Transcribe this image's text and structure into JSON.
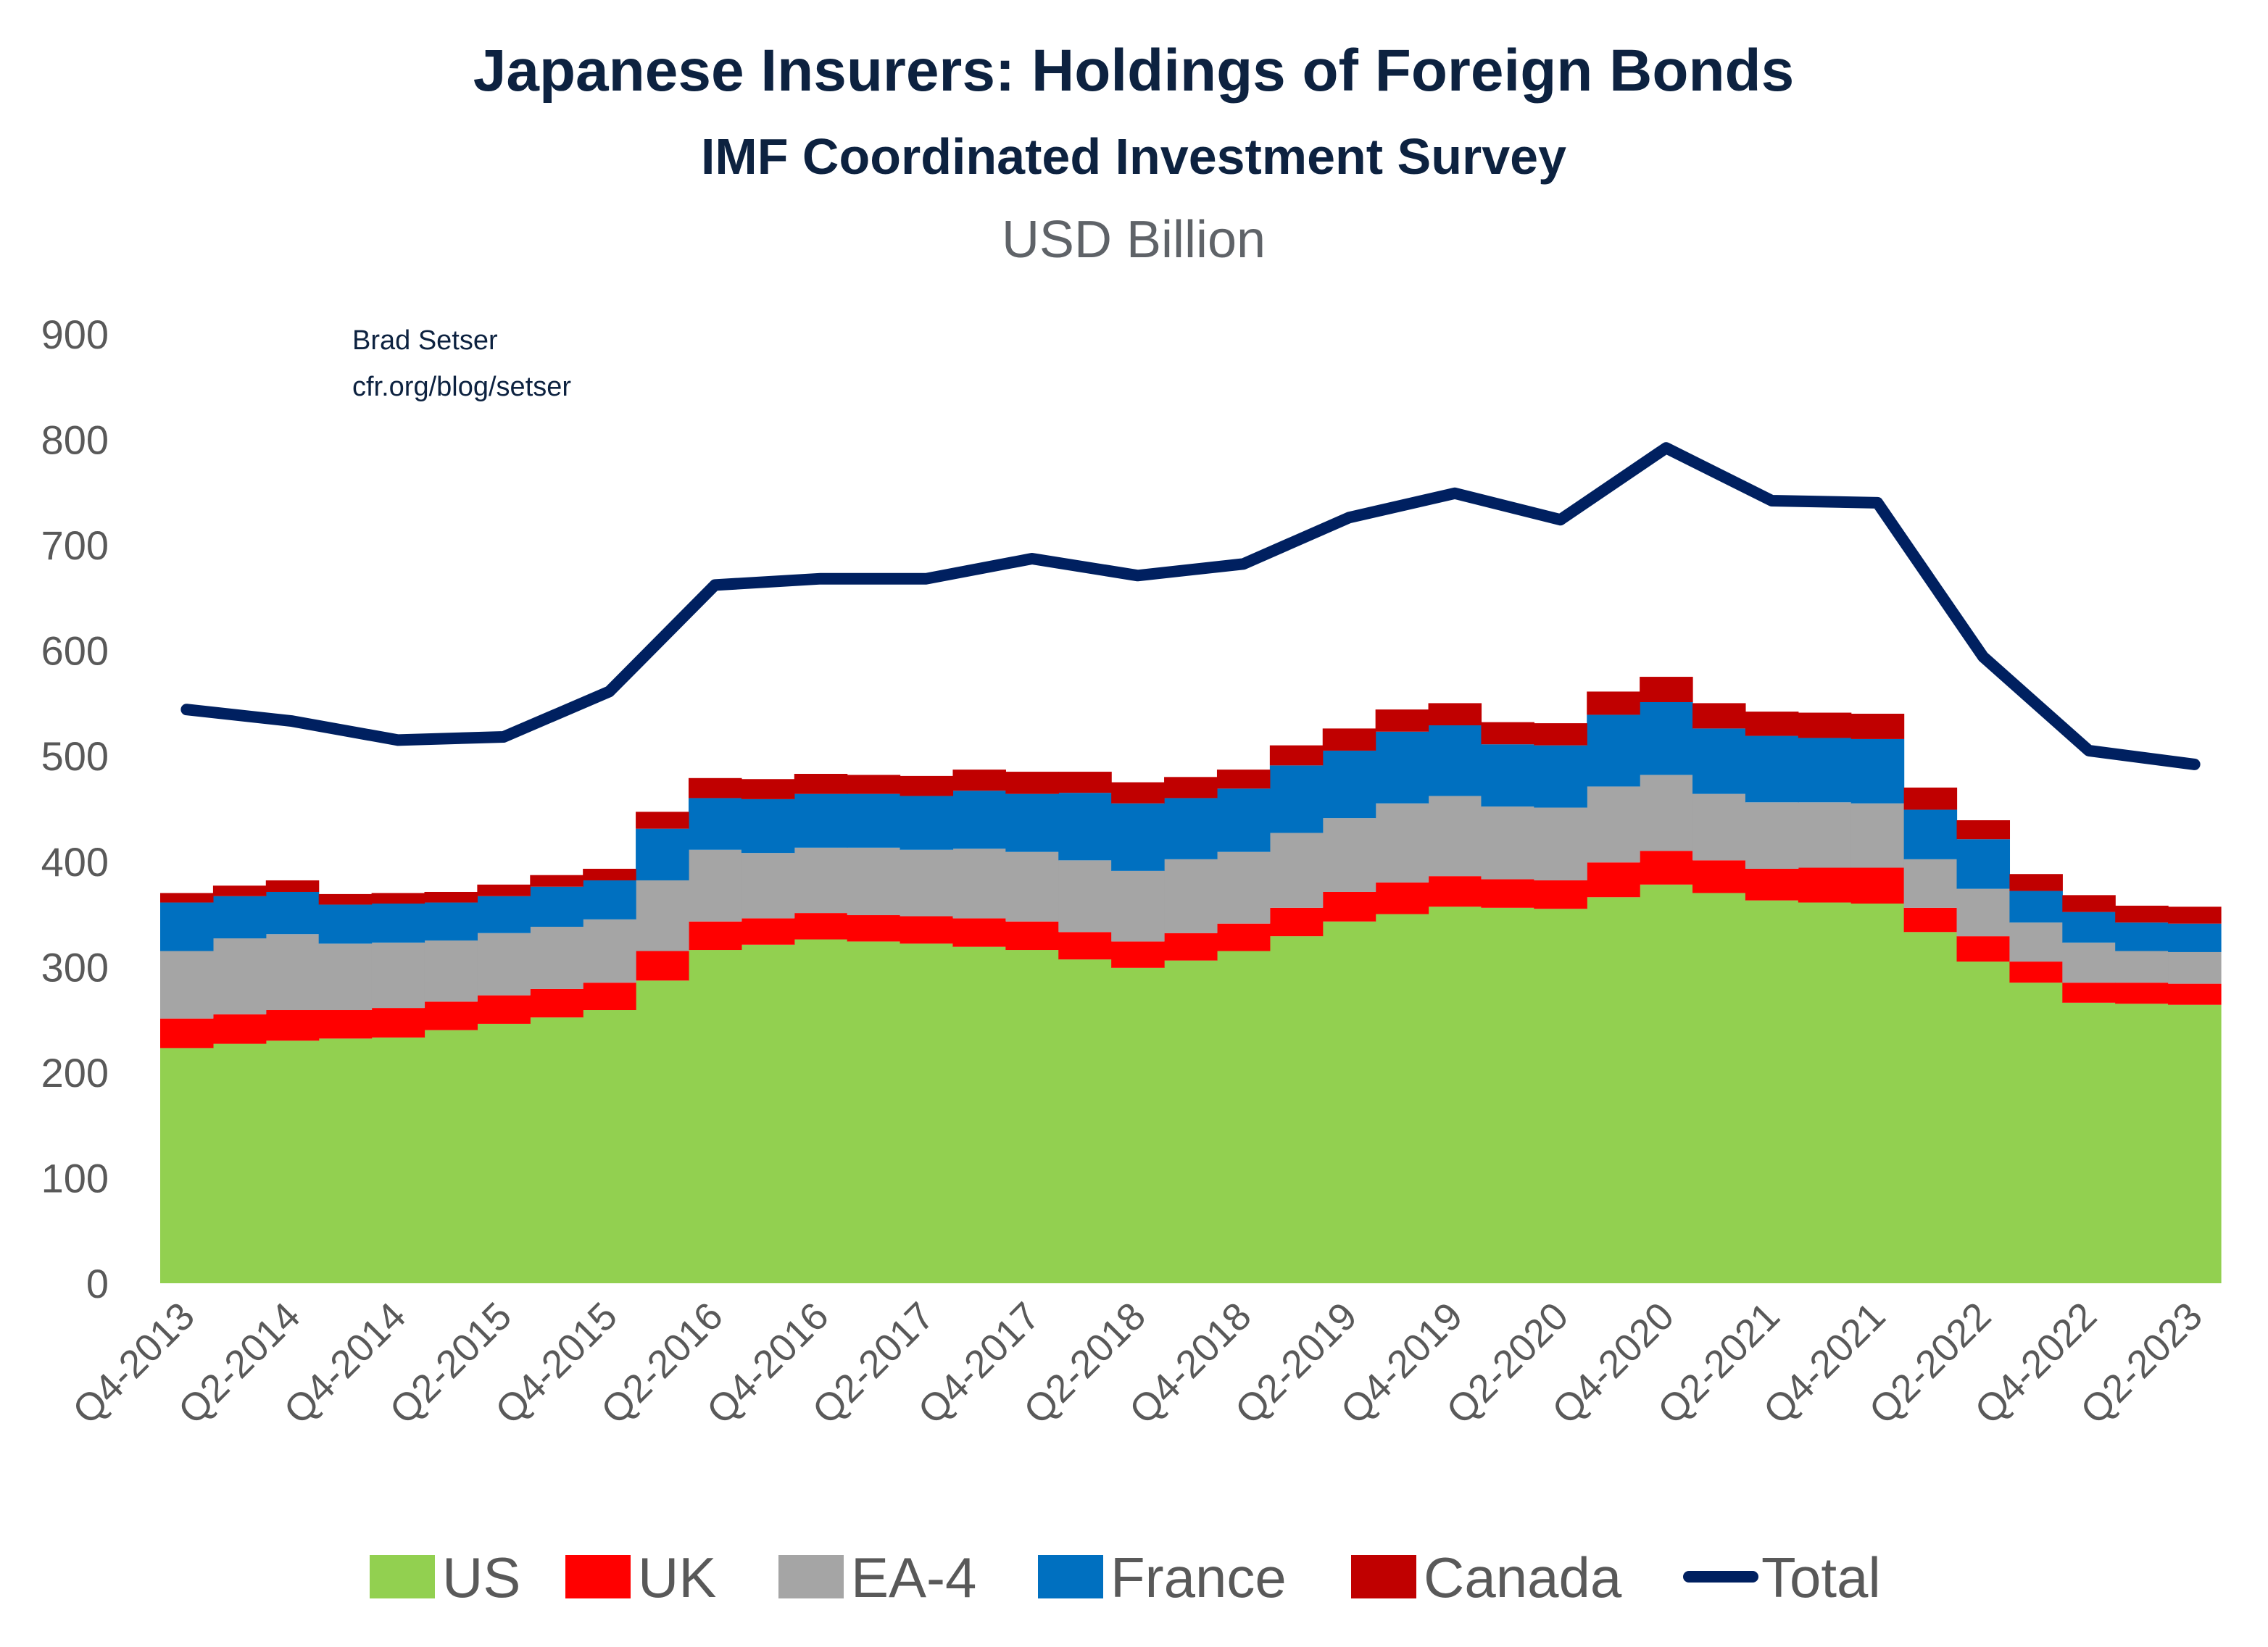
{
  "chart_data": {
    "type": "area",
    "stacked": true,
    "title": "Japanese Insurers: Holdings of Foreign Bonds",
    "subtitle": "IMF Coordinated Investment Survey",
    "unit_label": "USD Billion",
    "annotation": [
      "Brad Setser",
      "cfr.org/blog/setser"
    ],
    "xlabel": "",
    "ylabel": "",
    "ylim": [
      0,
      900
    ],
    "yticks": [
      0,
      100,
      200,
      300,
      400,
      500,
      600,
      700,
      800,
      900
    ],
    "grid": false,
    "legend_position": "bottom",
    "categories": [
      "Q4-2013",
      "Q1-2014",
      "Q2-2014",
      "Q3-2014",
      "Q4-2014",
      "Q1-2015",
      "Q2-2015",
      "Q3-2015",
      "Q4-2015",
      "Q1-2016",
      "Q2-2016",
      "Q3-2016",
      "Q4-2016",
      "Q1-2017",
      "Q2-2017",
      "Q3-2017",
      "Q4-2017",
      "Q1-2018",
      "Q2-2018",
      "Q3-2018",
      "Q4-2018",
      "Q1-2019",
      "Q2-2019",
      "Q3-2019",
      "Q4-2019",
      "Q1-2020",
      "Q2-2020",
      "Q3-2020",
      "Q4-2020",
      "Q1-2021",
      "Q2-2021",
      "Q3-2021",
      "Q4-2021",
      "Q1-2022",
      "Q2-2022",
      "Q3-2022",
      "Q4-2022",
      "Q1-2023",
      "Q2-2023"
    ],
    "tick_labels": [
      "Q4-2013",
      "Q2-2014",
      "Q4-2014",
      "Q2-2015",
      "Q4-2015",
      "Q2-2016",
      "Q4-2016",
      "Q2-2017",
      "Q4-2017",
      "Q2-2018",
      "Q4-2018",
      "Q2-2019",
      "Q4-2019",
      "Q2-2020",
      "Q4-2020",
      "Q2-2021",
      "Q4-2021",
      "Q2-2022",
      "Q4-2022",
      "Q2-2023"
    ],
    "series": [
      {
        "name": "US",
        "kind": "stacked-step-area",
        "color": "#92D050",
        "values": [
          223,
          227,
          230,
          232,
          233,
          240,
          246,
          252,
          259,
          287,
          316,
          321,
          326,
          324,
          322,
          319,
          316,
          307,
          299,
          306,
          315,
          329,
          343,
          350,
          357,
          356,
          355,
          366,
          378,
          370,
          363,
          361,
          360,
          333,
          305,
          285,
          266,
          265,
          264
        ]
      },
      {
        "name": "UK",
        "kind": "stacked-step-area",
        "color": "#FF0000",
        "values": [
          28,
          28,
          29,
          27,
          28,
          27,
          27,
          27,
          26,
          28,
          27,
          25,
          25,
          25,
          26,
          27,
          27,
          26,
          25,
          26,
          26,
          27,
          28,
          30,
          29,
          27,
          27,
          33,
          32,
          31,
          30,
          33,
          34,
          23,
          24,
          20,
          19,
          20,
          20
        ]
      },
      {
        "name": "EA-4",
        "kind": "stacked-step-area",
        "color": "#A5A5A5",
        "values": [
          64,
          72,
          72,
          63,
          62,
          58,
          59,
          59,
          60,
          67,
          68,
          62,
          62,
          64,
          63,
          66,
          66,
          68,
          67,
          70,
          68,
          71,
          70,
          75,
          76,
          69,
          69,
          72,
          72,
          63,
          63,
          62,
          61,
          46,
          45,
          37,
          38,
          30,
          30
        ]
      },
      {
        "name": "France",
        "kind": "stacked-step-area",
        "color": "#0070C0",
        "values": [
          46,
          40,
          40,
          37,
          37,
          36,
          35,
          38,
          37,
          49,
          49,
          51,
          51,
          51,
          51,
          55,
          55,
          64,
          64,
          58,
          60,
          64,
          64,
          68,
          67,
          59,
          59,
          68,
          69,
          62,
          63,
          61,
          61,
          47,
          47,
          30,
          29,
          27,
          27
        ]
      },
      {
        "name": "Canada",
        "kind": "stacked-step-area",
        "color": "#C00000",
        "values": [
          9,
          10,
          11,
          10,
          10,
          10,
          11,
          11,
          11,
          16,
          19,
          19,
          19,
          18,
          19,
          20,
          21,
          20,
          20,
          20,
          18,
          19,
          21,
          21,
          21,
          21,
          21,
          22,
          24,
          24,
          23,
          24,
          24,
          21,
          18,
          16,
          16,
          16,
          16
        ]
      },
      {
        "name": "Total",
        "kind": "line",
        "color": "#002060",
        "x": [
          "Q4-2013",
          "Q2-2014",
          "Q4-2014",
          "Q2-2015",
          "Q4-2015",
          "Q2-2016",
          "Q4-2016",
          "Q2-2017",
          "Q4-2017",
          "Q2-2018",
          "Q4-2018",
          "Q2-2019",
          "Q4-2019",
          "Q2-2020",
          "Q4-2020",
          "Q2-2021",
          "Q4-2021",
          "Q2-2022",
          "Q4-2022",
          "Q2-2023"
        ],
        "values": [
          544,
          533,
          515,
          518,
          561,
          662,
          668,
          668,
          687,
          671,
          682,
          726,
          749,
          724,
          792,
          742,
          740,
          594,
          505,
          492
        ]
      }
    ]
  }
}
